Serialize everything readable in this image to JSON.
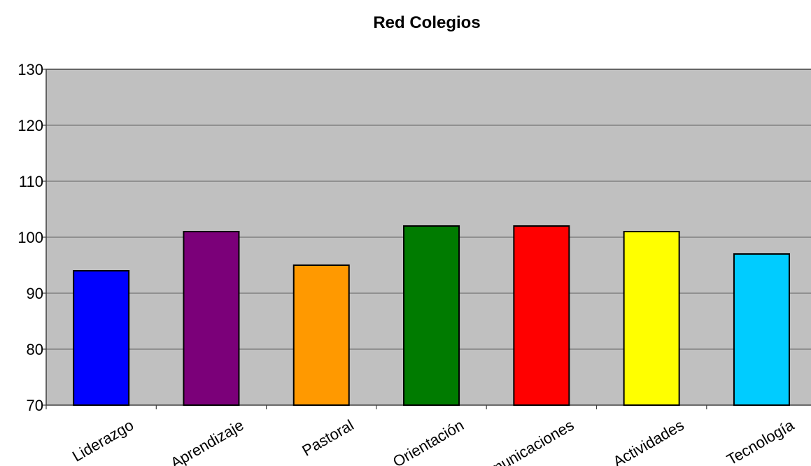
{
  "chart_data": {
    "type": "bar",
    "title": "Red Colegios",
    "xlabel": "",
    "ylabel": "",
    "ylim": [
      70,
      130
    ],
    "yticks": [
      70,
      80,
      90,
      100,
      110,
      120,
      130
    ],
    "grid": true,
    "legend": "none",
    "categories": [
      "Liderazgo",
      "Aprendizaje",
      "Pastoral",
      "Orientación",
      "Comunicaciones",
      "Actividades",
      "Tecnología"
    ],
    "values": [
      94,
      101,
      95,
      102,
      102,
      101,
      97
    ],
    "colors": [
      "#0000ff",
      "#7b0079",
      "#ff9900",
      "#007b00",
      "#ff0000",
      "#ffff00",
      "#00ccff"
    ],
    "plot_background": "#c0c0c0"
  }
}
